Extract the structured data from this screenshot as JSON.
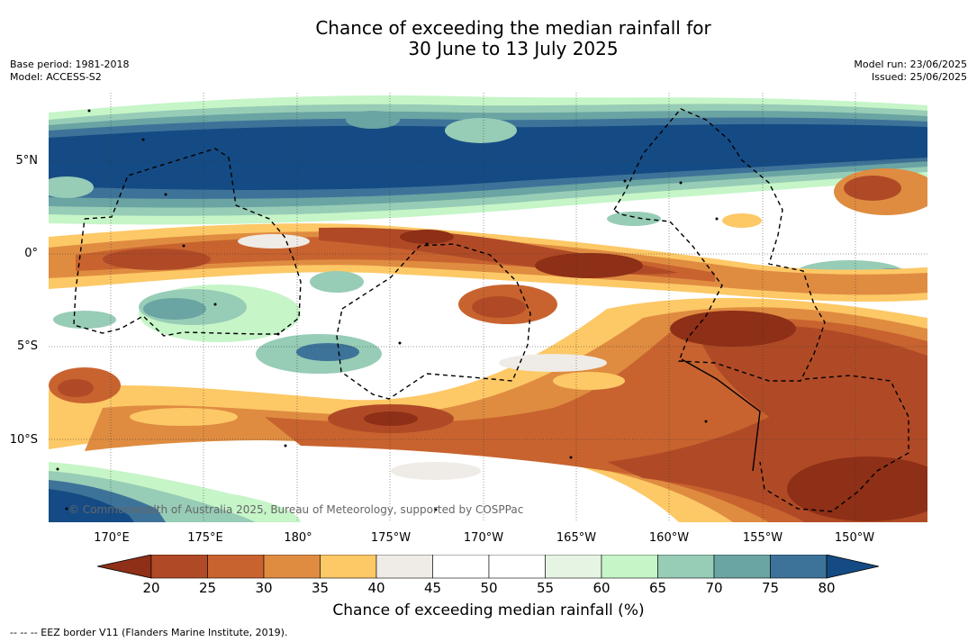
{
  "title": {
    "line1": "Chance of exceeding the median rainfall for",
    "line2": "30 June to 13 July 2025"
  },
  "meta_left": {
    "base_period": "Base period: 1981-2018",
    "model": "Model: ACCESS-S2"
  },
  "meta_right": {
    "model_run": "Model run: 23/06/2025",
    "issued": "Issued: 25/06/2025"
  },
  "map": {
    "lat_labels": [
      "5°N",
      "0°",
      "5°S",
      "10°S"
    ],
    "lon_labels": [
      "170°E",
      "175°E",
      "180°",
      "175°W",
      "170°W",
      "165°W",
      "160°W",
      "155°W",
      "150°W"
    ],
    "copyright": "© Commonwealth of Australia 2025, Bureau of Meteorology, supported by COSPPac",
    "boundary_style": "dashed black EEZ lines"
  },
  "colorbar": {
    "ticks": [
      "20",
      "25",
      "30",
      "35",
      "40",
      "45",
      "50",
      "55",
      "60",
      "65",
      "70",
      "75",
      "80"
    ],
    "colors": [
      "#8e2f17",
      "#b04a26",
      "#c8632f",
      "#df8c41",
      "#fdc866",
      "#efebe6",
      "#ffffff",
      "#ffffff",
      "#e6f4e3",
      "#c6f5c8",
      "#97ccb6",
      "#6aa4a3",
      "#3e7399",
      "#154b84"
    ],
    "title": "Chance of exceeding median rainfall (%)"
  },
  "footer": "--  --  -- EEZ border V11 (Flanders Marine Institute, 2019)."
}
